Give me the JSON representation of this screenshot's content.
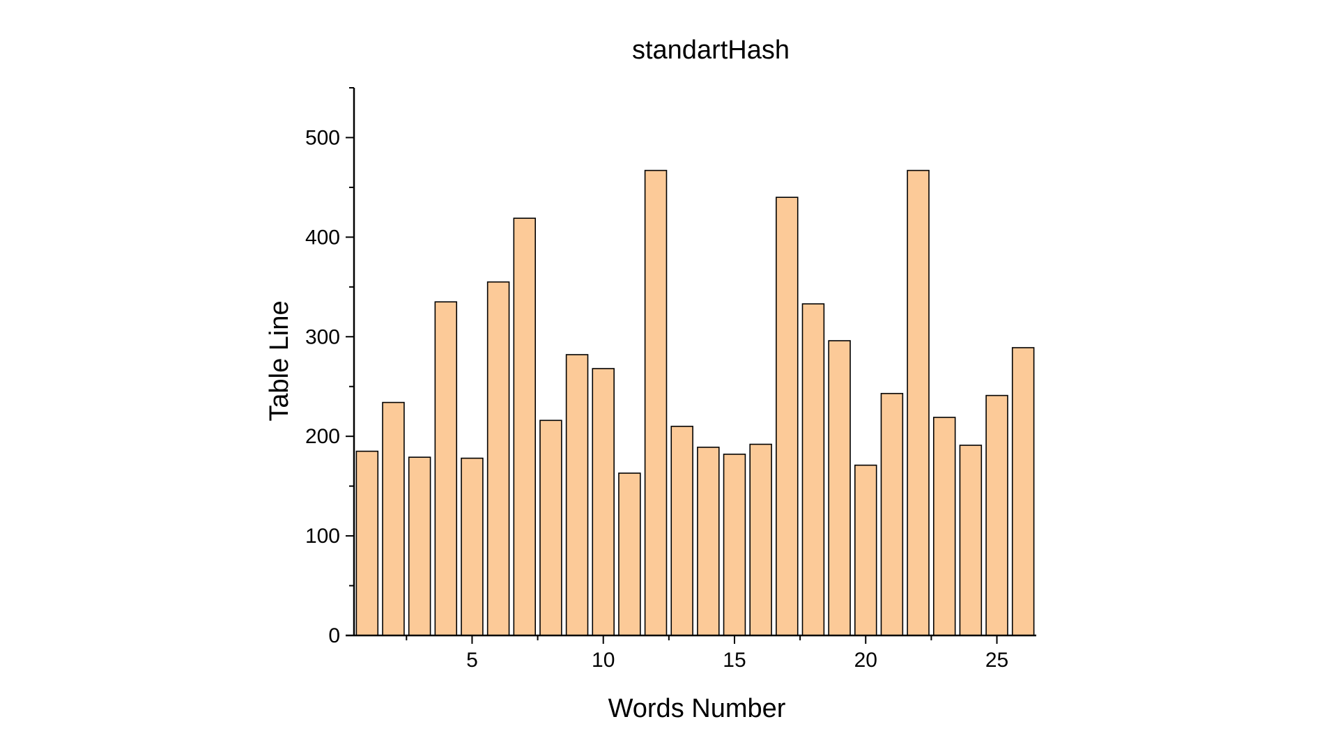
{
  "chart_data": {
    "type": "bar",
    "title": "standartHash",
    "xlabel": "Words Number",
    "ylabel": "Table Line",
    "categories": [
      1,
      2,
      3,
      4,
      5,
      6,
      7,
      8,
      9,
      10,
      11,
      12,
      13,
      14,
      15,
      16,
      17,
      18,
      19,
      20,
      21,
      22,
      23,
      24,
      25,
      26
    ],
    "values": [
      185,
      234,
      179,
      335,
      178,
      355,
      419,
      216,
      282,
      268,
      163,
      467,
      210,
      189,
      182,
      192,
      440,
      333,
      296,
      171,
      243,
      467,
      219,
      191,
      241,
      289
    ],
    "xlim": [
      0.5,
      26.5
    ],
    "ylim": [
      0,
      550
    ],
    "x_ticks": [
      5,
      10,
      15,
      20,
      25
    ],
    "y_ticks": [
      0,
      100,
      200,
      300,
      400,
      500
    ],
    "bar_fill": "#FCCA98",
    "bar_stroke": "#000000",
    "grid": false,
    "legend": "none"
  }
}
